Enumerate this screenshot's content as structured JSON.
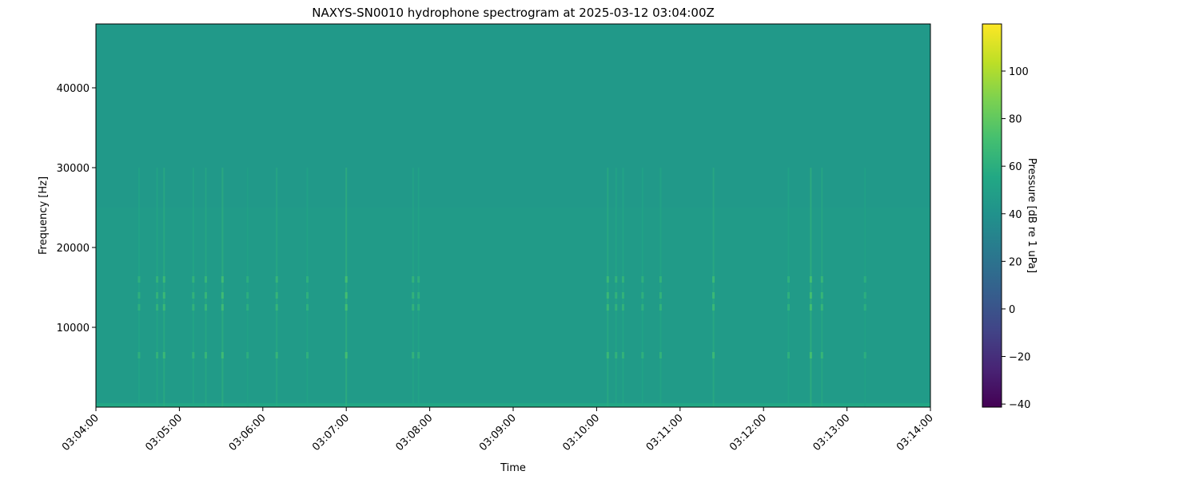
{
  "chart_data": {
    "type": "heatmap",
    "title": "NAXYS-SN0010 hydrophone spectrogram at 2025-03-12 03:04:00Z",
    "xlabel": "Time",
    "ylabel": "Frequency [Hz]",
    "colorbar_label": "Pressure [dB re 1 uPa]",
    "colormap": "viridis",
    "xlim": [
      "03:04:00",
      "03:14:00"
    ],
    "x_ticks": [
      "03:04:00",
      "03:05:00",
      "03:06:00",
      "03:07:00",
      "03:08:00",
      "03:09:00",
      "03:10:00",
      "03:11:00",
      "03:12:00",
      "03:13:00",
      "03:14:00"
    ],
    "ylim": [
      0,
      48000
    ],
    "y_ticks": [
      10000,
      20000,
      30000,
      40000
    ],
    "clim": [
      -41.3,
      119.8
    ],
    "colorbar_ticks": [
      -40,
      -20,
      0,
      20,
      40,
      60,
      80,
      100
    ],
    "background_level_db": 45,
    "low_frequency_band": {
      "freq_max_hz": 500,
      "level_db": 55
    },
    "harmonic_bands_hz": [
      6500,
      12500,
      14000,
      16000
    ],
    "transient_events": [
      {
        "time": "03:04:31",
        "peak_db": 62
      },
      {
        "time": "03:04:44",
        "peak_db": 64
      },
      {
        "time": "03:04:49",
        "peak_db": 68
      },
      {
        "time": "03:05:10",
        "peak_db": 64
      },
      {
        "time": "03:05:19",
        "peak_db": 66
      },
      {
        "time": "03:05:31",
        "peak_db": 70
      },
      {
        "time": "03:05:49",
        "peak_db": 60
      },
      {
        "time": "03:06:10",
        "peak_db": 66
      },
      {
        "time": "03:06:32",
        "peak_db": 62
      },
      {
        "time": "03:07:00",
        "peak_db": 72
      },
      {
        "time": "03:07:48",
        "peak_db": 64
      },
      {
        "time": "03:07:52",
        "peak_db": 62
      },
      {
        "time": "03:10:08",
        "peak_db": 68
      },
      {
        "time": "03:10:14",
        "peak_db": 64
      },
      {
        "time": "03:10:19",
        "peak_db": 64
      },
      {
        "time": "03:10:33",
        "peak_db": 62
      },
      {
        "time": "03:10:46",
        "peak_db": 64
      },
      {
        "time": "03:11:24",
        "peak_db": 68
      },
      {
        "time": "03:12:18",
        "peak_db": 62
      },
      {
        "time": "03:12:34",
        "peak_db": 72
      },
      {
        "time": "03:12:42",
        "peak_db": 66
      },
      {
        "time": "03:13:13",
        "peak_db": 60
      }
    ],
    "grid": false
  }
}
